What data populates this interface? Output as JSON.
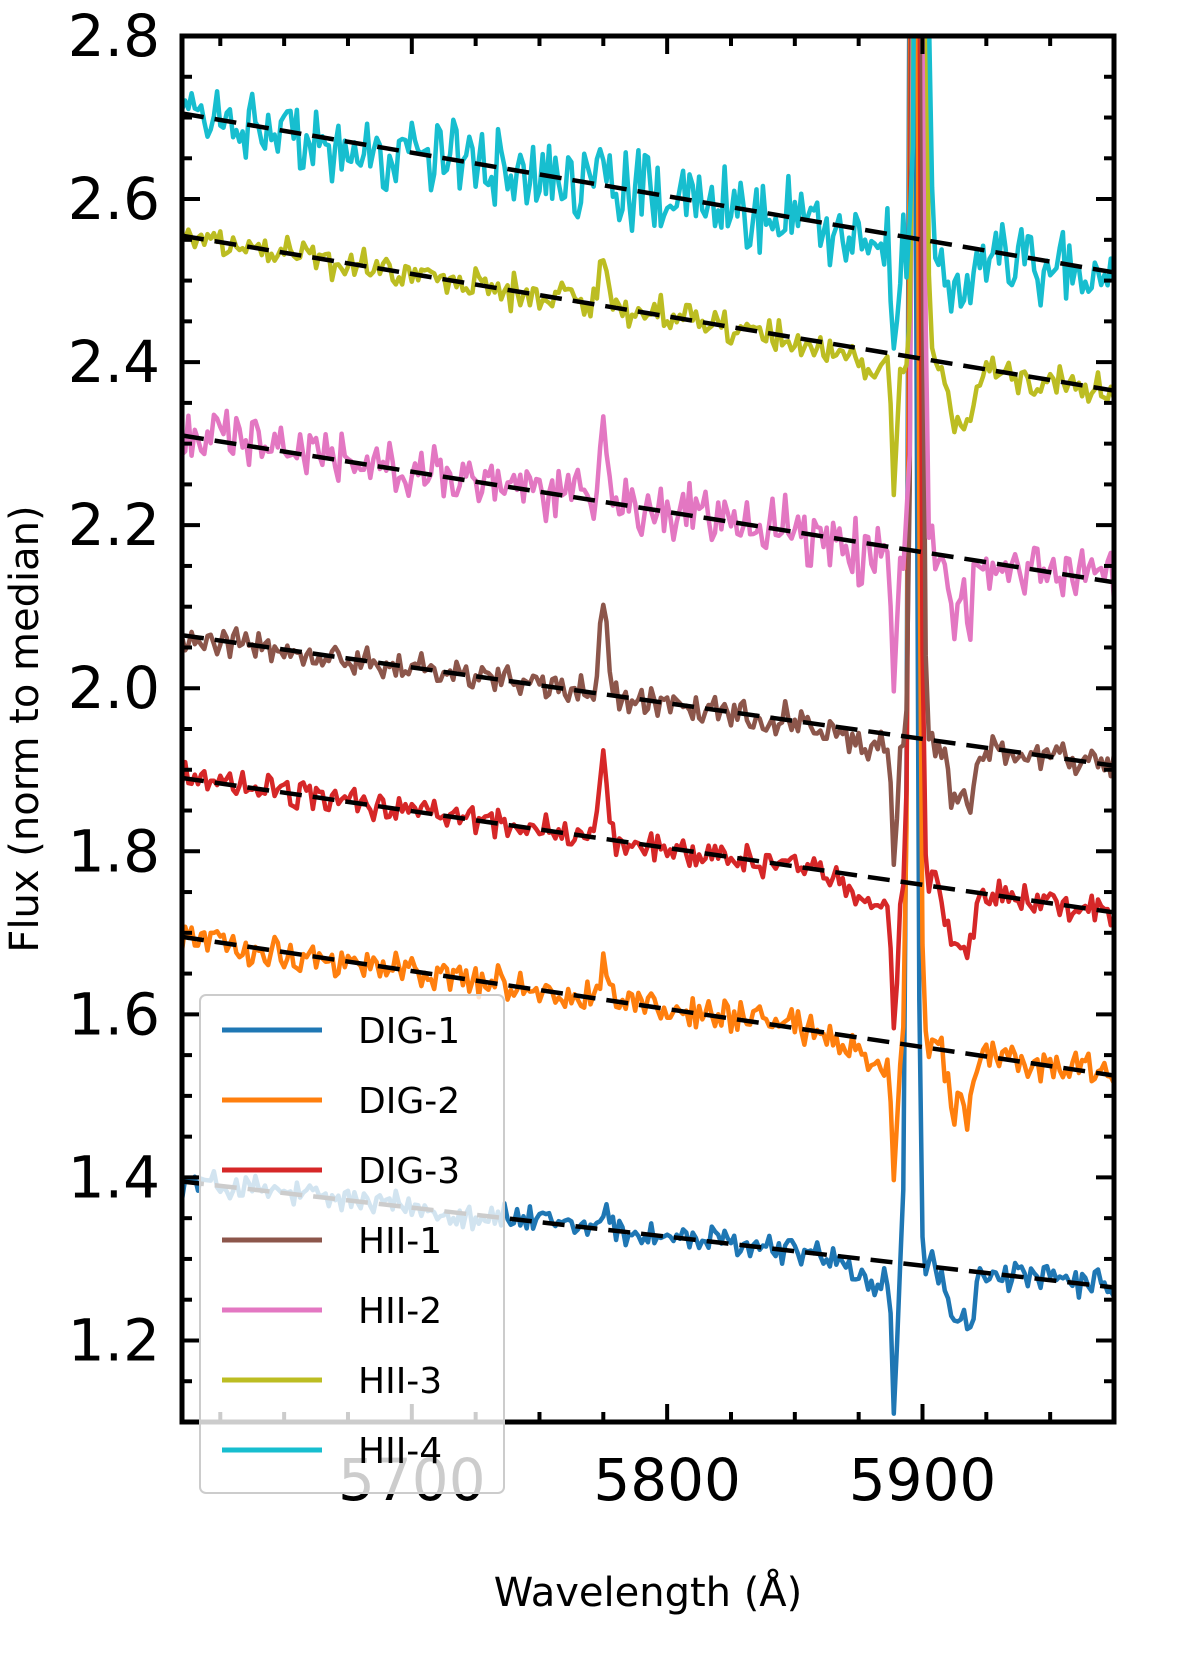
{
  "chart_data": {
    "type": "line",
    "title": "",
    "xlabel": "Wavelength (Å)",
    "ylabel": "Flux (norm to median)",
    "xlim": [
      5610,
      5975
    ],
    "ylim": [
      1.1,
      2.8
    ],
    "xticks": [
      5700,
      5800,
      5900
    ],
    "xtick_labels": [
      "5700",
      "5800",
      "5900"
    ],
    "yticks": [
      1.2,
      1.4,
      1.6,
      1.8,
      2.0,
      2.2,
      2.4,
      2.6,
      2.8
    ],
    "ytick_labels": [
      "1.2",
      "1.4",
      "1.6",
      "1.8",
      "2.0",
      "2.2",
      "2.4",
      "2.6",
      "2.8"
    ],
    "grid": false,
    "legend_position": "lower-left",
    "series": [
      {
        "name": "DIG-1",
        "color": "#1f77b4",
        "continuum": [
          1.395,
          1.265
        ],
        "noise": 0.018,
        "emission_5775": 0.03,
        "line_style": "blue"
      },
      {
        "name": "DIG-2",
        "color": "#ff7f0e",
        "continuum": [
          1.695,
          1.525
        ],
        "noise": 0.02,
        "emission_5775": 0.05,
        "line_style": "orange"
      },
      {
        "name": "DIG-3",
        "color": "#d62728",
        "continuum": [
          1.89,
          1.725
        ],
        "noise": 0.018,
        "emission_5775": 0.1,
        "line_style": "red"
      },
      {
        "name": "HII-1",
        "color": "#8c564b",
        "continuum": [
          2.065,
          1.905
        ],
        "noise": 0.018,
        "emission_5775": 0.11,
        "line_style": "brown"
      },
      {
        "name": "HII-2",
        "color": "#e377c2",
        "continuum": [
          2.31,
          2.13
        ],
        "noise": 0.035,
        "emission_5775": 0.1,
        "line_style": "pink"
      },
      {
        "name": "HII-3",
        "color": "#bcbd22",
        "continuum": [
          2.555,
          2.365
        ],
        "noise": 0.02,
        "emission_5775": 0.05,
        "line_style": "olive"
      },
      {
        "name": "HII-4",
        "color": "#17becf",
        "continuum": [
          2.705,
          2.51
        ],
        "noise": 0.045,
        "emission_5775": 0.04,
        "line_style": "cyan"
      }
    ],
    "fit_lines": [
      {
        "series": "DIG-1",
        "x": [
          5610,
          5975
        ],
        "y": [
          1.395,
          1.265
        ]
      },
      {
        "series": "DIG-2",
        "x": [
          5610,
          5975
        ],
        "y": [
          1.695,
          1.525
        ]
      },
      {
        "series": "DIG-3",
        "x": [
          5610,
          5975
        ],
        "y": [
          1.89,
          1.725
        ]
      },
      {
        "series": "HII-1",
        "x": [
          5610,
          5975
        ],
        "y": [
          2.065,
          1.905
        ]
      },
      {
        "series": "HII-2",
        "x": [
          5610,
          5975
        ],
        "y": [
          2.31,
          2.13
        ]
      },
      {
        "series": "HII-3",
        "x": [
          5610,
          5975
        ],
        "y": [
          2.555,
          2.365
        ]
      },
      {
        "series": "HII-4",
        "x": [
          5610,
          5975
        ],
        "y": [
          2.705,
          2.51
        ]
      }
    ],
    "fit_line_style": "dashed black",
    "features": {
      "emission_line_x": 5775,
      "sodium_emission_x": [
        5893,
        5899
      ],
      "absorption_x": [
        5890,
        5896,
        5912,
        5918
      ]
    }
  }
}
